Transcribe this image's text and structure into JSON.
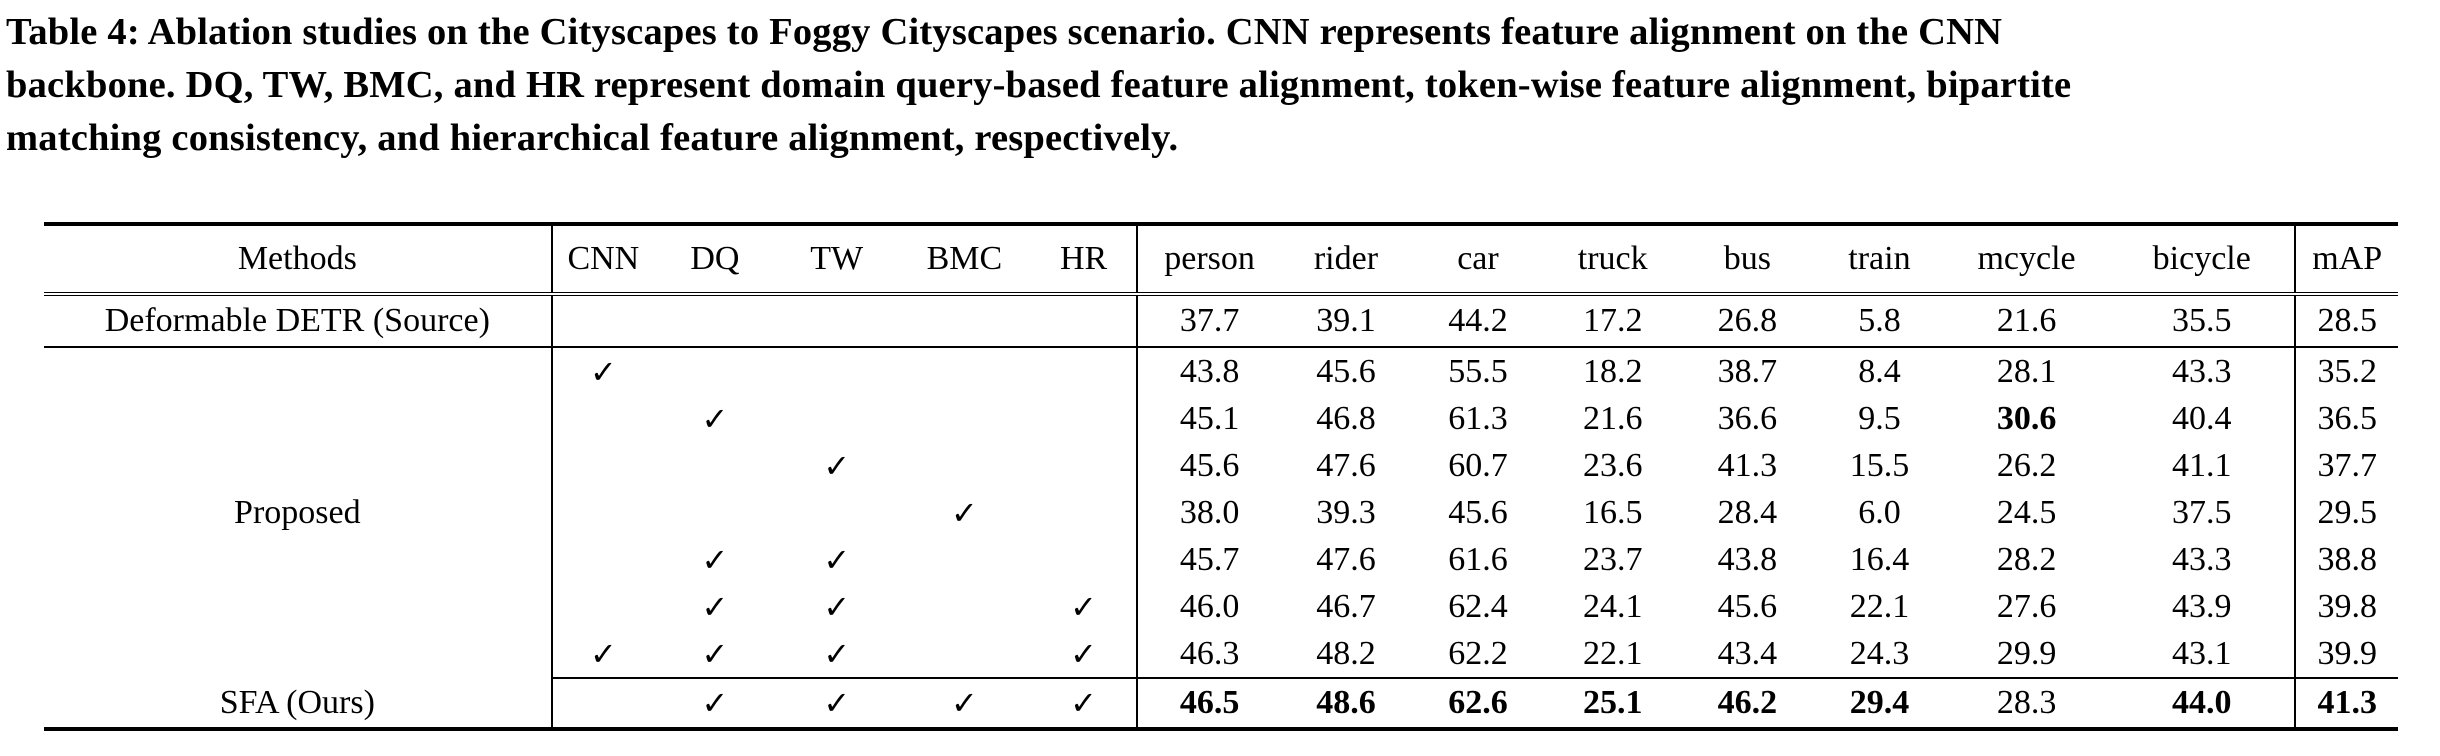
{
  "caption": {
    "lines": [
      "Table 4: Ablation studies on the Cityscapes to Foggy Cityscapes scenario. CNN represents feature alignment on the CNN",
      "backbone. DQ, TW, BMC, and HR represent domain query-based feature alignment, token-wise feature alignment, bipartite",
      "matching consistency, and hierarchical feature alignment, respectively."
    ]
  },
  "table": {
    "headers": [
      "Methods",
      "CNN",
      "DQ",
      "TW",
      "BMC",
      "HR",
      "person",
      "rider",
      "car",
      "truck",
      "bus",
      "train",
      "mcycle",
      "bicycle",
      "mAP"
    ],
    "check_symbol": "✓",
    "source_row": {
      "method": "Deformable DETR (Source)",
      "values": [
        "37.7",
        "39.1",
        "44.2",
        "17.2",
        "26.8",
        "5.8",
        "21.6",
        "35.5",
        "28.5"
      ]
    },
    "proposed_label": "Proposed",
    "proposed_rows": [
      {
        "checks": [
          "✓",
          "",
          "",
          "",
          ""
        ],
        "values": [
          "43.8",
          "45.6",
          "55.5",
          "18.2",
          "38.7",
          "8.4",
          "28.1",
          "43.3",
          "35.2"
        ]
      },
      {
        "checks": [
          "",
          "✓",
          "",
          "",
          ""
        ],
        "values": [
          "45.1",
          "46.8",
          "61.3",
          "21.6",
          "36.6",
          "9.5",
          "30.6",
          "40.4",
          "36.5"
        ]
      },
      {
        "checks": [
          "",
          "",
          "✓",
          "",
          ""
        ],
        "values": [
          "45.6",
          "47.6",
          "60.7",
          "23.6",
          "41.3",
          "15.5",
          "26.2",
          "41.1",
          "37.7"
        ]
      },
      {
        "checks": [
          "",
          "",
          "",
          "✓",
          ""
        ],
        "values": [
          "38.0",
          "39.3",
          "45.6",
          "16.5",
          "28.4",
          "6.0",
          "24.5",
          "37.5",
          "29.5"
        ]
      },
      {
        "checks": [
          "",
          "✓",
          "✓",
          "",
          ""
        ],
        "values": [
          "45.7",
          "47.6",
          "61.6",
          "23.7",
          "43.8",
          "16.4",
          "28.2",
          "43.3",
          "38.8"
        ]
      },
      {
        "checks": [
          "",
          "✓",
          "✓",
          "",
          "✓"
        ],
        "values": [
          "46.0",
          "46.7",
          "62.4",
          "24.1",
          "45.6",
          "22.1",
          "27.6",
          "43.9",
          "39.8"
        ]
      },
      {
        "checks": [
          "✓",
          "✓",
          "✓",
          "",
          "✓"
        ],
        "values": [
          "46.3",
          "48.2",
          "62.2",
          "22.1",
          "43.4",
          "24.3",
          "29.9",
          "43.1",
          "39.9"
        ]
      }
    ],
    "ours_row": {
      "method": "SFA (Ours)",
      "checks": [
        "",
        "✓",
        "✓",
        "✓",
        "✓"
      ],
      "values": [
        "46.5",
        "48.6",
        "62.6",
        "25.1",
        "46.2",
        "29.4",
        "28.3",
        "44.0",
        "41.3"
      ]
    }
  }
}
